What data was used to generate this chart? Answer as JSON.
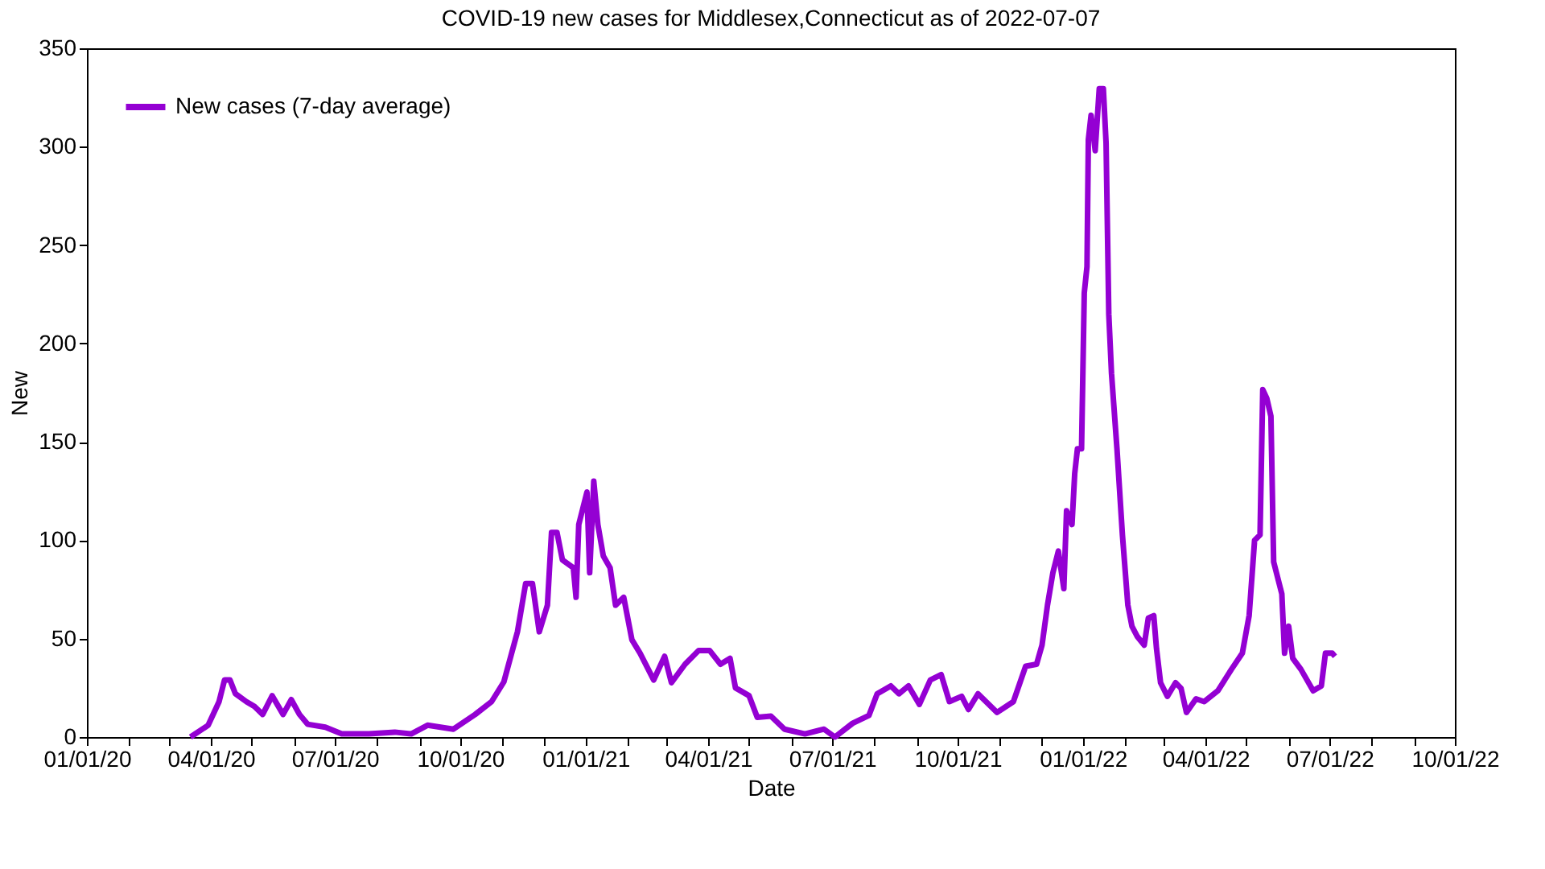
{
  "chart_data": {
    "type": "line",
    "title": "COVID-19 new cases for Middlesex,Connecticut as of 2022-07-07",
    "xlabel": "Date",
    "ylabel": "New",
    "x": [
      "2020-03-17",
      "2020-03-30",
      "2020-04-07",
      "2020-04-11",
      "2020-04-15",
      "2020-04-19",
      "2020-04-27",
      "2020-05-03",
      "2020-05-09",
      "2020-05-16",
      "2020-05-24",
      "2020-05-30",
      "2020-06-05",
      "2020-06-11",
      "2020-06-24",
      "2020-07-06",
      "2020-07-26",
      "2020-08-14",
      "2020-08-26",
      "2020-09-07",
      "2020-09-26",
      "2020-10-12",
      "2020-10-24",
      "2020-11-02",
      "2020-11-12",
      "2020-11-18",
      "2020-11-23",
      "2020-11-28",
      "2020-12-04",
      "2020-12-07",
      "2020-12-11",
      "2020-12-15",
      "2020-12-23",
      "2020-12-25",
      "2020-12-27",
      "2021-01-02",
      "2021-01-04",
      "2021-01-07",
      "2021-01-10",
      "2021-01-14",
      "2021-01-19",
      "2021-01-23",
      "2021-01-29",
      "2021-02-04",
      "2021-02-10",
      "2021-02-20",
      "2021-02-28",
      "2021-03-05",
      "2021-03-15",
      "2021-03-25",
      "2021-04-02",
      "2021-04-10",
      "2021-04-17",
      "2021-04-21",
      "2021-05-01",
      "2021-05-07",
      "2021-05-17",
      "2021-05-27",
      "2021-06-11",
      "2021-06-25",
      "2021-07-03",
      "2021-07-16",
      "2021-07-28",
      "2021-08-03",
      "2021-08-13",
      "2021-08-19",
      "2021-08-26",
      "2021-09-03",
      "2021-09-11",
      "2021-09-19",
      "2021-09-25",
      "2021-10-04",
      "2021-10-09",
      "2021-10-16",
      "2021-10-30",
      "2021-11-11",
      "2021-11-20",
      "2021-11-28",
      "2021-12-02",
      "2021-12-06",
      "2021-12-10",
      "2021-12-14",
      "2021-12-18",
      "2021-12-20",
      "2021-12-24",
      "2021-12-26",
      "2021-12-28",
      "2021-12-31",
      "2022-01-02",
      "2022-01-04",
      "2022-01-05",
      "2022-01-07",
      "2022-01-10",
      "2022-01-13",
      "2022-01-16",
      "2022-01-18",
      "2022-01-20",
      "2022-01-22",
      "2022-01-26",
      "2022-01-30",
      "2022-02-03",
      "2022-02-06",
      "2022-02-10",
      "2022-02-15",
      "2022-02-18",
      "2022-02-22",
      "2022-02-24",
      "2022-02-27",
      "2022-03-04",
      "2022-03-10",
      "2022-03-14",
      "2022-03-18",
      "2022-03-25",
      "2022-03-31",
      "2022-04-10",
      "2022-04-20",
      "2022-04-28",
      "2022-05-03",
      "2022-05-07",
      "2022-05-11",
      "2022-05-13",
      "2022-05-16",
      "2022-05-19",
      "2022-05-21",
      "2022-05-27",
      "2022-05-29",
      "2022-06-01",
      "2022-06-04",
      "2022-06-10",
      "2022-06-19",
      "2022-06-25",
      "2022-06-28",
      "2022-07-03",
      "2022-07-05"
    ],
    "series": [
      {
        "name": "New cases (7-day average)",
        "color": "#9400d3",
        "values": [
          0,
          6,
          18,
          29,
          29,
          22,
          18,
          15.5,
          11.5,
          21,
          11.5,
          19,
          11.5,
          6.5,
          5,
          1.6,
          1.6,
          2.5,
          1.6,
          6,
          4,
          11.5,
          18,
          28,
          53.5,
          78,
          78,
          53.5,
          67,
          104,
          104,
          90,
          86,
          71,
          108,
          124.5,
          83.5,
          130,
          108,
          92,
          86,
          67,
          71,
          49.4,
          42.6,
          29,
          41,
          27.6,
          37,
          44,
          44,
          37,
          40,
          25,
          21,
          10,
          10.6,
          4,
          1.6,
          4,
          0,
          7,
          11,
          22,
          26,
          22,
          26,
          16.6,
          29,
          31.7,
          18,
          20.7,
          14,
          22,
          12.5,
          18,
          36,
          37,
          46.7,
          67,
          83.6,
          94.5,
          75.4,
          115,
          108,
          134,
          146.5,
          146.5,
          225.7,
          239,
          303.5,
          316,
          298,
          329.5,
          329.5,
          302,
          214.8,
          184.7,
          146.5,
          102.7,
          67,
          56.3,
          51,
          46.7,
          60.4,
          61.7,
          45,
          27.6,
          20.7,
          27.6,
          24.8,
          12.5,
          19.4,
          18,
          23.5,
          34.4,
          42.6,
          61.7,
          100,
          102.7,
          176.5,
          172,
          163,
          89,
          72.7,
          42.6,
          56.3,
          40,
          34.4,
          23.5,
          26,
          42.6,
          42.6,
          41
        ]
      }
    ],
    "xlim": [
      "2020-01-01",
      "2022-10-01"
    ],
    "xticks": [
      {
        "value": "2020-01-01",
        "label": "01/01/20"
      },
      {
        "value": "2020-02-01",
        "label": null
      },
      {
        "value": "2020-03-01",
        "label": null
      },
      {
        "value": "2020-04-01",
        "label": "04/01/20"
      },
      {
        "value": "2020-05-01",
        "label": null
      },
      {
        "value": "2020-06-01",
        "label": null
      },
      {
        "value": "2020-07-01",
        "label": "07/01/20"
      },
      {
        "value": "2020-08-01",
        "label": null
      },
      {
        "value": "2020-09-01",
        "label": null
      },
      {
        "value": "2020-10-01",
        "label": "10/01/20"
      },
      {
        "value": "2020-11-01",
        "label": null
      },
      {
        "value": "2020-12-01",
        "label": null
      },
      {
        "value": "2021-01-01",
        "label": "01/01/21"
      },
      {
        "value": "2021-02-01",
        "label": null
      },
      {
        "value": "2021-03-01",
        "label": null
      },
      {
        "value": "2021-04-01",
        "label": "04/01/21"
      },
      {
        "value": "2021-05-01",
        "label": null
      },
      {
        "value": "2021-06-01",
        "label": null
      },
      {
        "value": "2021-07-01",
        "label": "07/01/21"
      },
      {
        "value": "2021-08-01",
        "label": null
      },
      {
        "value": "2021-09-01",
        "label": null
      },
      {
        "value": "2021-10-01",
        "label": "10/01/21"
      },
      {
        "value": "2021-11-01",
        "label": null
      },
      {
        "value": "2021-12-01",
        "label": null
      },
      {
        "value": "2022-01-01",
        "label": "01/01/22"
      },
      {
        "value": "2022-02-01",
        "label": null
      },
      {
        "value": "2022-03-01",
        "label": null
      },
      {
        "value": "2022-04-01",
        "label": "04/01/22"
      },
      {
        "value": "2022-05-01",
        "label": null
      },
      {
        "value": "2022-06-01",
        "label": null
      },
      {
        "value": "2022-07-01",
        "label": "07/01/22"
      },
      {
        "value": "2022-08-01",
        "label": null
      },
      {
        "value": "2022-09-01",
        "label": null
      },
      {
        "value": "2022-10-01",
        "label": "10/01/22"
      }
    ],
    "ylim": [
      0,
      350
    ],
    "yticks": [
      0,
      50,
      100,
      150,
      200,
      250,
      300,
      350
    ],
    "grid": false,
    "legend": "top left",
    "line_style": "solid",
    "marker": "none"
  }
}
